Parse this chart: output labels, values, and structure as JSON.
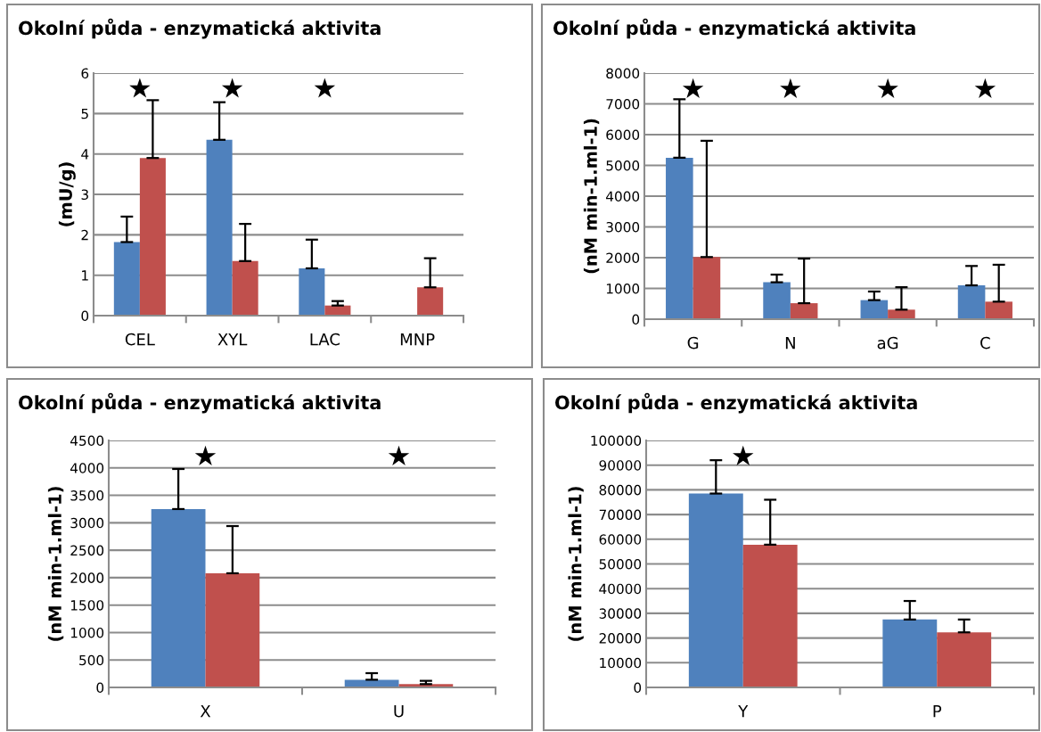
{
  "chart_data": [
    {
      "type": "bar",
      "title": "Okolní půda - enzymatická aktivita",
      "ylabel": "(mU/g)",
      "categories": [
        "CEL",
        "XYL",
        "LAC",
        "MNP"
      ],
      "ylim": [
        0,
        6
      ],
      "yticks": [
        0,
        1,
        2,
        3,
        4,
        5,
        6
      ],
      "grid": "y",
      "series": [
        {
          "color": "#4f81bd",
          "values": [
            1.82,
            4.35,
            1.17,
            null
          ],
          "errors": [
            [
              1.82,
              2.45
            ],
            [
              4.35,
              5.28
            ],
            [
              1.17,
              1.88
            ],
            null
          ]
        },
        {
          "color": "#c0504d",
          "values": [
            3.9,
            1.35,
            0.25,
            0.7
          ],
          "errors": [
            [
              3.9,
              5.33
            ],
            [
              1.35,
              2.27
            ],
            [
              0.25,
              0.36
            ],
            [
              0.7,
              1.42
            ]
          ]
        }
      ],
      "annotations": [
        "★",
        "★",
        "★"
      ]
    },
    {
      "type": "bar",
      "title": "Okolní půda - enzymatická aktivita",
      "ylabel": "(nM min-1.ml-1)",
      "categories": [
        "G",
        "N",
        "aG",
        "C"
      ],
      "ylim": [
        0,
        8000
      ],
      "yticks": [
        0,
        1000,
        2000,
        3000,
        4000,
        5000,
        6000,
        7000,
        8000
      ],
      "grid": "y",
      "series": [
        {
          "color": "#4f81bd",
          "values": [
            5250,
            1200,
            620,
            1100
          ],
          "errors": [
            [
              5250,
              7150
            ],
            [
              1200,
              1450
            ],
            [
              620,
              900
            ],
            [
              1100,
              1730
            ]
          ]
        },
        {
          "color": "#c0504d",
          "values": [
            2020,
            520,
            310,
            570
          ],
          "errors": [
            [
              2020,
              5800
            ],
            [
              520,
              1970
            ],
            [
              310,
              1040
            ],
            [
              570,
              1770
            ]
          ]
        }
      ],
      "annotations": [
        "★",
        "★",
        "★",
        "★"
      ]
    },
    {
      "type": "bar",
      "title": "Okolní půda - enzymatická aktivita",
      "ylabel": "(nM min-1.ml-1)",
      "categories": [
        "X",
        "U"
      ],
      "ylim": [
        0,
        4500
      ],
      "yticks": [
        0,
        500,
        1000,
        1500,
        2000,
        2500,
        3000,
        3500,
        4000,
        4500
      ],
      "grid": "y",
      "series": [
        {
          "color": "#4f81bd",
          "values": [
            3250,
            140
          ],
          "errors": [
            [
              3250,
              3980
            ],
            [
              140,
              260
            ]
          ]
        },
        {
          "color": "#c0504d",
          "values": [
            2080,
            60
          ],
          "errors": [
            [
              2080,
              2940
            ],
            [
              60,
              120
            ]
          ]
        }
      ],
      "annotations": [
        "★",
        "★"
      ]
    },
    {
      "type": "bar",
      "title": "Okolní půda - enzymatická aktivita",
      "ylabel": "(nM min-1.ml-1)",
      "categories": [
        "Y",
        "P"
      ],
      "ylim": [
        0,
        100000
      ],
      "yticks": [
        0,
        10000,
        20000,
        30000,
        40000,
        50000,
        60000,
        70000,
        80000,
        90000,
        100000
      ],
      "grid": "y",
      "series": [
        {
          "color": "#4f81bd",
          "values": [
            78500,
            27500
          ],
          "errors": [
            [
              78500,
              92000
            ],
            [
              27500,
              35000
            ]
          ]
        },
        {
          "color": "#c0504d",
          "values": [
            57800,
            22300
          ],
          "errors": [
            [
              57800,
              76000
            ],
            [
              22300,
              27500
            ]
          ]
        }
      ],
      "annotations": [
        "★"
      ]
    }
  ]
}
